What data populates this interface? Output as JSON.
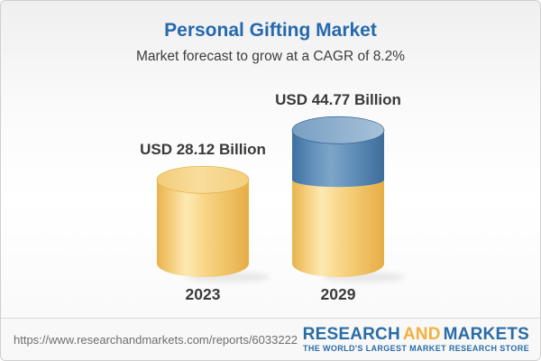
{
  "header": {
    "title": "Personal Gifting Market",
    "subtitle": "Market forecast to grow at a CAGR of 8.2%"
  },
  "chart_data": {
    "type": "bar",
    "subtype": "3d-cylinder",
    "title": "Personal Gifting Market",
    "subtitle": "Market forecast to grow at a CAGR of 8.2%",
    "cagr_percent": 8.2,
    "unit": "USD Billion",
    "categories": [
      "2023",
      "2029"
    ],
    "values": [
      28.12,
      44.77
    ],
    "value_labels": [
      "USD 28.12 Billion",
      "USD 44.77 Billion"
    ],
    "legend": "none",
    "grid": false,
    "colors": {
      "base_segment": "#f5cf7e",
      "growth_segment": "#5b89b6",
      "title_accent": "#2569ac"
    }
  },
  "footer": {
    "url": "https://www.researchandmarkets.com/reports/6033222",
    "logo": {
      "word1": "RESEARCH",
      "word2": "AND",
      "word3": "MARKETS",
      "tagline": "THE WORLD'S LARGEST MARKET RESEARCH STORE"
    }
  }
}
